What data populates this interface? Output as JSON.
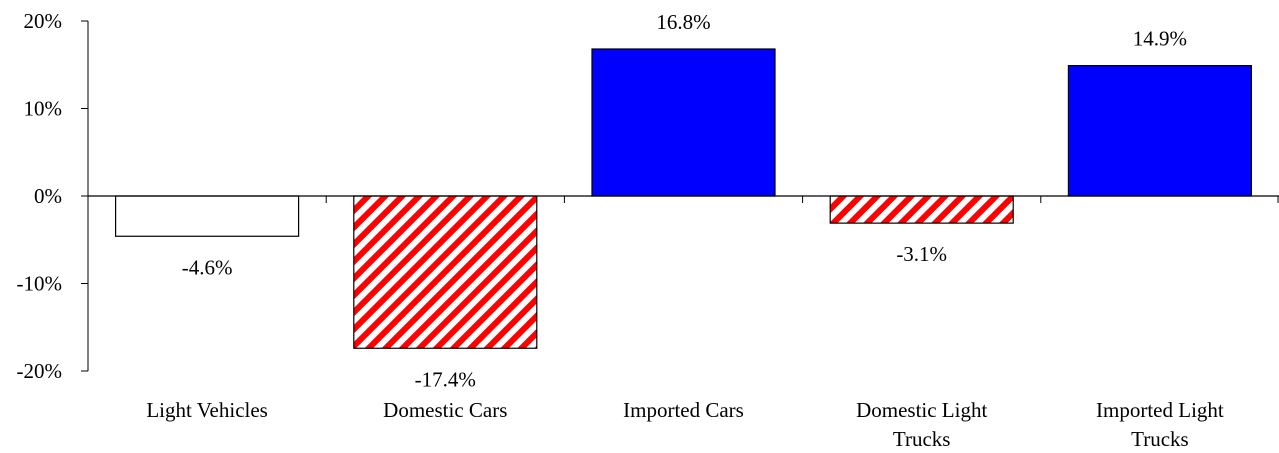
{
  "chart_data": {
    "type": "bar",
    "categories": [
      [
        "Light Vehicles"
      ],
      [
        "Domestic Cars"
      ],
      [
        "Imported Cars"
      ],
      [
        "Domestic Light",
        "Trucks"
      ],
      [
        "Imported Light",
        "Trucks"
      ]
    ],
    "values": [
      -4.6,
      -17.4,
      16.8,
      -3.1,
      14.9
    ],
    "data_labels": [
      "-4.6%",
      "-17.4%",
      "16.8%",
      "-3.1%",
      "14.9%"
    ],
    "bar_styles": [
      "white",
      "red-stripes",
      "blue",
      "red-stripes",
      "blue"
    ],
    "ylim": [
      -20,
      20
    ],
    "y_ticks": [
      20,
      10,
      0,
      -10,
      -20
    ],
    "y_tick_labels": [
      "20%",
      "10%",
      "0%",
      "-10%",
      "-20%"
    ],
    "grid": false,
    "legend": "none",
    "colors": {
      "blue": "#0000ff",
      "red": "#ff0000",
      "white": "#ffffff",
      "axis": "#000000"
    }
  }
}
